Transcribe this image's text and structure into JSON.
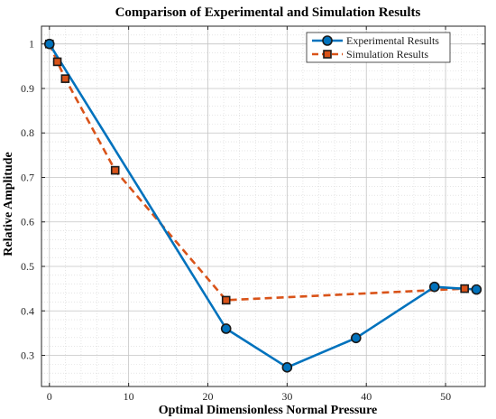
{
  "chart_data": {
    "type": "line",
    "title": "Comparison of Experimental and Simulation Results",
    "xlabel": "Optimal Dimensionless Normal Pressure",
    "ylabel": "Relative Amplitude",
    "xlim": [
      -1,
      55
    ],
    "ylim": [
      0.23,
      1.04
    ],
    "xticks": [
      0,
      10,
      20,
      30,
      40,
      50
    ],
    "yticks": [
      0.3,
      0.4,
      0.5,
      0.6,
      0.7,
      0.8,
      0.9,
      1
    ],
    "grid": true,
    "legend_position": "top-right",
    "series": [
      {
        "name": "Experimental Results",
        "color": "#0072BD",
        "marker": "circle",
        "line_style": "solid",
        "x": [
          0,
          22.3,
          30,
          38.7,
          48.6,
          53.9
        ],
        "y": [
          1.0,
          0.36,
          0.273,
          0.339,
          0.454,
          0.448
        ]
      },
      {
        "name": "Simulation Results",
        "color": "#D95319",
        "marker": "square",
        "line_style": "dashed",
        "x": [
          0,
          1.0,
          2.0,
          8.3,
          22.3,
          52.4
        ],
        "y": [
          1.0,
          0.96,
          0.922,
          0.716,
          0.424,
          0.45
        ]
      }
    ]
  }
}
